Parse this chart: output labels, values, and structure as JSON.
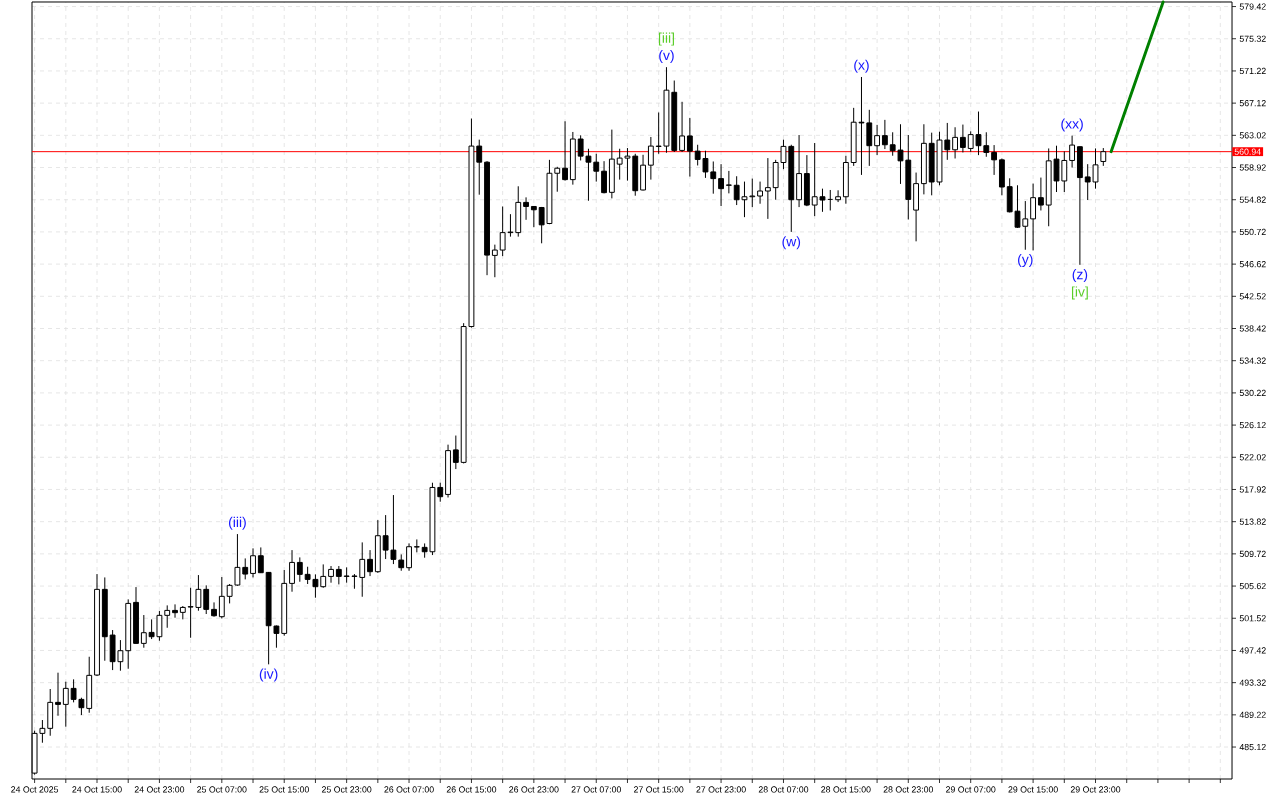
{
  "chart_data": {
    "type": "candlestick",
    "color": "#000000",
    "x": [
      "2025-10-24T07:00",
      "2025-10-24T08:00",
      "2025-10-24T09:00",
      "2025-10-24T10:00",
      "2025-10-24T11:00",
      "2025-10-24T12:00",
      "2025-10-24T13:00",
      "2025-10-24T14:00",
      "2025-10-24T15:00",
      "2025-10-24T16:00",
      "2025-10-24T17:00",
      "2025-10-24T18:00",
      "2025-10-24T19:00",
      "2025-10-24T20:00",
      "2025-10-24T21:00",
      "2025-10-24T22:00",
      "2025-10-24T23:00",
      "2025-10-25T00:00",
      "2025-10-25T01:00",
      "2025-10-25T02:00",
      "2025-10-25T03:00",
      "2025-10-25T04:00",
      "2025-10-25T05:00",
      "2025-10-25T06:00",
      "2025-10-25T07:00",
      "2025-10-25T08:00",
      "2025-10-25T09:00",
      "2025-10-25T10:00",
      "2025-10-25T11:00",
      "2025-10-25T12:00",
      "2025-10-25T13:00",
      "2025-10-25T14:00",
      "2025-10-25T15:00",
      "2025-10-25T16:00",
      "2025-10-25T17:00",
      "2025-10-25T18:00",
      "2025-10-25T19:00",
      "2025-10-25T20:00",
      "2025-10-25T21:00",
      "2025-10-25T22:00",
      "2025-10-25T23:00",
      "2025-10-26T00:00",
      "2025-10-26T01:00",
      "2025-10-26T02:00",
      "2025-10-26T03:00",
      "2025-10-26T04:00",
      "2025-10-26T05:00",
      "2025-10-26T06:00",
      "2025-10-26T07:00",
      "2025-10-26T08:00",
      "2025-10-26T09:00",
      "2025-10-26T10:00",
      "2025-10-26T11:00",
      "2025-10-26T12:00",
      "2025-10-26T13:00",
      "2025-10-26T14:00",
      "2025-10-26T15:00",
      "2025-10-26T16:00",
      "2025-10-26T17:00",
      "2025-10-26T18:00",
      "2025-10-26T19:00",
      "2025-10-26T20:00",
      "2025-10-26T21:00",
      "2025-10-26T22:00",
      "2025-10-26T23:00",
      "2025-10-27T00:00",
      "2025-10-27T01:00",
      "2025-10-27T02:00",
      "2025-10-27T03:00",
      "2025-10-27T04:00",
      "2025-10-27T05:00",
      "2025-10-27T06:00",
      "2025-10-27T07:00",
      "2025-10-27T08:00",
      "2025-10-27T09:00",
      "2025-10-27T10:00",
      "2025-10-27T11:00",
      "2025-10-27T12:00",
      "2025-10-27T13:00",
      "2025-10-27T14:00",
      "2025-10-27T15:00",
      "2025-10-27T16:00",
      "2025-10-27T17:00",
      "2025-10-27T18:00",
      "2025-10-27T19:00",
      "2025-10-27T20:00",
      "2025-10-27T21:00",
      "2025-10-27T22:00",
      "2025-10-27T23:00",
      "2025-10-28T00:00",
      "2025-10-28T01:00",
      "2025-10-28T02:00",
      "2025-10-28T03:00",
      "2025-10-28T04:00",
      "2025-10-28T05:00",
      "2025-10-28T06:00",
      "2025-10-28T07:00",
      "2025-10-28T08:00",
      "2025-10-28T09:00",
      "2025-10-28T10:00",
      "2025-10-28T11:00",
      "2025-10-28T12:00",
      "2025-10-28T13:00",
      "2025-10-28T14:00",
      "2025-10-28T15:00",
      "2025-10-28T16:00",
      "2025-10-28T17:00",
      "2025-10-28T18:00",
      "2025-10-28T19:00",
      "2025-10-28T20:00",
      "2025-10-28T21:00",
      "2025-10-28T22:00",
      "2025-10-28T23:00",
      "2025-10-29T00:00",
      "2025-10-29T01:00",
      "2025-10-29T02:00",
      "2025-10-29T03:00",
      "2025-10-29T04:00",
      "2025-10-29T05:00",
      "2025-10-29T06:00",
      "2025-10-29T07:00",
      "2025-10-29T08:00",
      "2025-10-29T09:00",
      "2025-10-29T10:00",
      "2025-10-29T11:00",
      "2025-10-29T12:00",
      "2025-10-29T13:00",
      "2025-10-29T14:00",
      "2025-10-29T15:00",
      "2025-10-29T16:00",
      "2025-10-29T17:00",
      "2025-10-29T18:00",
      "2025-10-29T19:00",
      "2025-10-29T20:00",
      "2025-10-29T21:00",
      "2025-10-29T22:00",
      "2025-10-29T23:00",
      "2025-10-30T00:00"
    ],
    "ohlc": [
      [
        481.8,
        487.2,
        481.6,
        486.86
      ],
      [
        486.86,
        488.56,
        485.67,
        487.5
      ],
      [
        487.5,
        492.51,
        486.56,
        490.81
      ],
      [
        490.81,
        494.59,
        489.11,
        490.55
      ],
      [
        490.55,
        493.44,
        487.71,
        492.59
      ],
      [
        492.59,
        493.74,
        490.81,
        491.19
      ],
      [
        491.19,
        491.4,
        489.19,
        490.13
      ],
      [
        490.04,
        496.62,
        489.49,
        494.25
      ],
      [
        494.29,
        507.15,
        494.16,
        505.2
      ],
      [
        505.2,
        506.72,
        496.11,
        499.17
      ],
      [
        499.38,
        500.02,
        494.92,
        495.99
      ],
      [
        495.99,
        498.74,
        494.84,
        497.39
      ],
      [
        497.39,
        503.92,
        495.09,
        503.41
      ],
      [
        503.54,
        505.49,
        498.3,
        498.32
      ],
      [
        498.32,
        501.93,
        497.77,
        499.68
      ],
      [
        499.72,
        501.38,
        498.87,
        499.17
      ],
      [
        499.17,
        502.44,
        498.66,
        501.89
      ],
      [
        501.89,
        503.16,
        500.31,
        502.52
      ],
      [
        502.52,
        503.29,
        501.59,
        502.23
      ],
      [
        502.27,
        503.08,
        501.38,
        502.9
      ],
      [
        502.95,
        505.41,
        499.04,
        503.0
      ],
      [
        502.9,
        507.02,
        502.48,
        505.2
      ],
      [
        505.2,
        505.71,
        502.06,
        502.65
      ],
      [
        502.65,
        503.54,
        501.72,
        501.84
      ],
      [
        501.72,
        506.77,
        501.5,
        504.31
      ],
      [
        504.31,
        505.88,
        503.41,
        505.71
      ],
      [
        505.75,
        512.24,
        505.66,
        508.0
      ],
      [
        508.0,
        509.14,
        506.47,
        507.15
      ],
      [
        507.23,
        510.42,
        506.72,
        509.48
      ],
      [
        509.48,
        510.54,
        507.3,
        507.32
      ],
      [
        507.36,
        507.4,
        495.65,
        500.57
      ],
      [
        500.53,
        500.6,
        497.77,
        499.59
      ],
      [
        499.59,
        507.66,
        499.3,
        505.96
      ],
      [
        505.96,
        510.2,
        504.9,
        508.63
      ],
      [
        508.63,
        509.27,
        506.17,
        507.11
      ],
      [
        507.11,
        508.08,
        505.88,
        506.47
      ],
      [
        506.47,
        507.11,
        504.14,
        505.54
      ],
      [
        505.54,
        508.38,
        505.4,
        506.85
      ],
      [
        506.85,
        508.17,
        506.05,
        507.74
      ],
      [
        507.74,
        508.17,
        505.83,
        506.85
      ],
      [
        506.85,
        508.0,
        506.05,
        506.9
      ],
      [
        506.9,
        507.15,
        505.28,
        506.85
      ],
      [
        506.72,
        511.18,
        504.26,
        509.02
      ],
      [
        509.02,
        510.2,
        506.89,
        507.45
      ],
      [
        507.45,
        514.02,
        507.3,
        512.03
      ],
      [
        512.03,
        514.66,
        509.06,
        510.2
      ],
      [
        510.2,
        517.21,
        508.42,
        509.02
      ],
      [
        508.93,
        509.65,
        507.57,
        507.96
      ],
      [
        507.96,
        511.05,
        507.57,
        510.63
      ],
      [
        510.6,
        511.56,
        509.91,
        510.63
      ],
      [
        510.55,
        511.05,
        509.23,
        509.99
      ],
      [
        509.99,
        518.78,
        509.57,
        518.18
      ],
      [
        518.18,
        518.78,
        516.36,
        517.0
      ],
      [
        517.29,
        523.63,
        516.9,
        522.87
      ],
      [
        522.96,
        524.79,
        520.52,
        521.37
      ],
      [
        521.37,
        539.1,
        521.24,
        538.67
      ],
      [
        538.67,
        565.16,
        538.54,
        561.65
      ],
      [
        561.65,
        562.47,
        555.46,
        559.6
      ],
      [
        559.6,
        559.73,
        545.21,
        547.77
      ],
      [
        547.73,
        549.1,
        544.95,
        548.41
      ],
      [
        548.41,
        553.96,
        547.64,
        550.63
      ],
      [
        550.63,
        552.98,
        550.12,
        550.7
      ],
      [
        550.63,
        556.53,
        550.12,
        554.48
      ],
      [
        554.48,
        555.12,
        552.26,
        553.96
      ],
      [
        553.96,
        554.0,
        551.32,
        553.54
      ],
      [
        553.83,
        553.9,
        549.27,
        551.62
      ],
      [
        551.79,
        559.9,
        551.7,
        558.19
      ],
      [
        558.19,
        559.01,
        555.84,
        558.83
      ],
      [
        558.83,
        564.81,
        557.25,
        557.38
      ],
      [
        557.38,
        563.45,
        556.74,
        562.55
      ],
      [
        562.55,
        563.02,
        559.82,
        560.37
      ],
      [
        560.37,
        561.31,
        554.69,
        559.6
      ],
      [
        559.6,
        560.67,
        557.13,
        558.45
      ],
      [
        558.45,
        559.73,
        555.63,
        555.72
      ],
      [
        555.76,
        563.75,
        554.99,
        559.99
      ],
      [
        559.35,
        561.31,
        557.38,
        560.12
      ],
      [
        560.12,
        561.4,
        557.25,
        560.37
      ],
      [
        560.37,
        560.67,
        555.33,
        555.97
      ],
      [
        556.06,
        560.54,
        556.0,
        559.22
      ],
      [
        559.22,
        562.81,
        557.38,
        561.65
      ],
      [
        561.6,
        565.93,
        560.67,
        561.65
      ],
      [
        561.65,
        571.7,
        560.8,
        568.77
      ],
      [
        568.5,
        570.0,
        560.9,
        561.1
      ],
      [
        561.1,
        567.29,
        560.9,
        562.94
      ],
      [
        562.94,
        565.24,
        557.77,
        561.01
      ],
      [
        561.01,
        561.82,
        559.18,
        559.95
      ],
      [
        560.07,
        561.06,
        557.6,
        558.36
      ],
      [
        558.36,
        559.69,
        555.59,
        557.51
      ],
      [
        557.51,
        559.35,
        554.01,
        556.23
      ],
      [
        556.7,
        558.49,
        555.63,
        556.66
      ],
      [
        556.66,
        557.81,
        554.14,
        554.82
      ],
      [
        554.82,
        557.13,
        552.6,
        555.2
      ],
      [
        555.2,
        557.51,
        553.88,
        555.29
      ],
      [
        555.29,
        557.13,
        554.31,
        555.93
      ],
      [
        555.93,
        560.12,
        552.38,
        556.36
      ],
      [
        556.36,
        559.9,
        554.82,
        559.56
      ],
      [
        559.56,
        562.47,
        558.71,
        561.61
      ],
      [
        561.61,
        561.82,
        550.72,
        554.82
      ],
      [
        554.82,
        563.06,
        553.88,
        558.15
      ],
      [
        558.15,
        560.5,
        554.0,
        554.14
      ],
      [
        554.14,
        562.04,
        552.73,
        555.2
      ],
      [
        555.2,
        556.23,
        553.28,
        554.78
      ],
      [
        554.86,
        556.06,
        553.45,
        554.86
      ],
      [
        554.82,
        556.02,
        554.52,
        555.2
      ],
      [
        555.2,
        560.42,
        554.31,
        559.56
      ],
      [
        559.56,
        566.52,
        559.13,
        564.69
      ],
      [
        564.69,
        570.45,
        557.98,
        564.6
      ],
      [
        564.6,
        566.27,
        559.13,
        561.7
      ],
      [
        561.7,
        564.35,
        560.5,
        562.98
      ],
      [
        562.98,
        564.99,
        561.27,
        561.82
      ],
      [
        561.82,
        563.41,
        560.42,
        561.06
      ],
      [
        561.14,
        564.43,
        556.83,
        559.77
      ],
      [
        559.86,
        563.06,
        552.3,
        554.86
      ],
      [
        553.5,
        558.28,
        549.52,
        556.87
      ],
      [
        556.87,
        564.43,
        555.5,
        562.0
      ],
      [
        562.0,
        563.36,
        555.38,
        557.08
      ],
      [
        557.08,
        563.49,
        556.66,
        562.42
      ],
      [
        562.42,
        564.6,
        559.9,
        561.18
      ],
      [
        561.18,
        564.05,
        560.07,
        562.76
      ],
      [
        562.76,
        564.39,
        560.84,
        561.48
      ],
      [
        561.35,
        563.53,
        560.93,
        563.11
      ],
      [
        563.11,
        566.05,
        560.5,
        561.7
      ],
      [
        561.7,
        563.41,
        560.29,
        560.84
      ],
      [
        560.84,
        561.78,
        557.98,
        559.9
      ],
      [
        559.9,
        560.07,
        555.38,
        556.44
      ],
      [
        556.48,
        557.55,
        553.2,
        553.28
      ],
      [
        553.36,
        556.66,
        551.23,
        551.32
      ],
      [
        551.44,
        554.65,
        548.45,
        552.38
      ],
      [
        552.38,
        556.87,
        548.37,
        555.08
      ],
      [
        555.08,
        557.64,
        553.45,
        554.14
      ],
      [
        554.14,
        561.35,
        551.44,
        559.77
      ],
      [
        559.99,
        561.7,
        555.8,
        557.21
      ],
      [
        557.21,
        560.97,
        555.8,
        559.82
      ],
      [
        559.82,
        562.98,
        558.92,
        561.78
      ],
      [
        561.57,
        561.6,
        546.53,
        557.64
      ],
      [
        557.72,
        559.35,
        554.78,
        557.08
      ],
      [
        557.08,
        561.35,
        556.23,
        559.26
      ],
      [
        559.69,
        561.4,
        559.13,
        560.94
      ]
    ],
    "series": [
      {
        "type": "line",
        "color": "#008000",
        "x": [
          "2025-10-30T01:00",
          "2025-10-30T07:40"
        ],
        "values": [
          560.94,
          580.0
        ]
      }
    ],
    "xlim": [
      "2025-10-24T06:40",
      "2025-10-30T16:30"
    ],
    "ylim": [
      481.05,
      580.0
    ],
    "yticks": [
      485.12,
      489.22,
      493.32,
      497.42,
      501.52,
      505.62,
      509.72,
      513.82,
      517.92,
      522.02,
      526.12,
      530.22,
      534.32,
      538.42,
      542.52,
      546.62,
      550.72,
      554.82,
      558.92,
      563.02,
      567.12,
      571.22,
      575.32,
      579.42
    ],
    "xticks": [
      {
        "value": "2025-10-24T07:00",
        "label": "24 Oct 2025"
      },
      {
        "value": "2025-10-24T11:00",
        "label": null
      },
      {
        "value": "2025-10-24T15:00",
        "label": "24 Oct 15:00"
      },
      {
        "value": "2025-10-24T19:00",
        "label": null
      },
      {
        "value": "2025-10-24T23:00",
        "label": "24 Oct 23:00"
      },
      {
        "value": "2025-10-25T03:00",
        "label": null
      },
      {
        "value": "2025-10-25T07:00",
        "label": "25 Oct 07:00"
      },
      {
        "value": "2025-10-25T11:00",
        "label": null
      },
      {
        "value": "2025-10-25T15:00",
        "label": "25 Oct 15:00"
      },
      {
        "value": "2025-10-25T19:00",
        "label": null
      },
      {
        "value": "2025-10-25T23:00",
        "label": "25 Oct 23:00"
      },
      {
        "value": "2025-10-26T03:00",
        "label": null
      },
      {
        "value": "2025-10-26T07:00",
        "label": "26 Oct 07:00"
      },
      {
        "value": "2025-10-26T11:00",
        "label": null
      },
      {
        "value": "2025-10-26T15:00",
        "label": "26 Oct 15:00"
      },
      {
        "value": "2025-10-26T19:00",
        "label": null
      },
      {
        "value": "2025-10-26T23:00",
        "label": "26 Oct 23:00"
      },
      {
        "value": "2025-10-27T03:00",
        "label": null
      },
      {
        "value": "2025-10-27T07:00",
        "label": "27 Oct 07:00"
      },
      {
        "value": "2025-10-27T11:00",
        "label": null
      },
      {
        "value": "2025-10-27T15:00",
        "label": "27 Oct 15:00"
      },
      {
        "value": "2025-10-27T19:00",
        "label": null
      },
      {
        "value": "2025-10-27T23:00",
        "label": "27 Oct 23:00"
      },
      {
        "value": "2025-10-28T03:00",
        "label": null
      },
      {
        "value": "2025-10-28T07:00",
        "label": "28 Oct 07:00"
      },
      {
        "value": "2025-10-28T11:00",
        "label": null
      },
      {
        "value": "2025-10-28T15:00",
        "label": "28 Oct 15:00"
      },
      {
        "value": "2025-10-28T19:00",
        "label": null
      },
      {
        "value": "2025-10-28T23:00",
        "label": "28 Oct 23:00"
      },
      {
        "value": "2025-10-29T03:00",
        "label": null
      },
      {
        "value": "2025-10-29T07:00",
        "label": "29 Oct 07:00"
      },
      {
        "value": "2025-10-29T11:00",
        "label": null
      },
      {
        "value": "2025-10-29T15:00",
        "label": "29 Oct 15:00"
      },
      {
        "value": "2025-10-29T19:00",
        "label": null
      },
      {
        "value": "2025-10-29T23:00",
        "label": "29 Oct 23:00"
      },
      {
        "value": "2025-10-30T03:00",
        "label": null
      },
      {
        "value": "2025-10-30T07:00",
        "label": null
      },
      {
        "value": "2025-10-30T11:00",
        "label": null
      },
      {
        "value": "2025-10-30T15:00",
        "label": null
      }
    ],
    "grid": true,
    "ref_lines": [
      {
        "axis": "y",
        "value": 560.94,
        "label": "560.94",
        "color": "#ff0000"
      }
    ],
    "annotations": [
      {
        "text": "(iii)",
        "x": "2025-10-25T09:00",
        "y": 512.24
      },
      {
        "text": "(iv)",
        "x": "2025-10-25T13:00",
        "y": 495.65
      },
      {
        "text": "(v)",
        "x": "2025-10-27T16:00",
        "y": 571.7
      },
      {
        "text": "[iii]",
        "x": "2025-10-27T16:00",
        "y": 571.7
      },
      {
        "text": "(w)",
        "x": "2025-10-28T08:00",
        "y": 550.72
      },
      {
        "text": "(x)",
        "x": "2025-10-28T17:00",
        "y": 570.45
      },
      {
        "text": "(y)",
        "x": "2025-10-29T14:00",
        "y": 548.45
      },
      {
        "text": "(xx)",
        "x": "2025-10-29T20:00",
        "y": 562.98
      },
      {
        "text": "(z)",
        "x": "2025-10-29T21:00",
        "y": 546.53
      },
      {
        "text": "[iv]",
        "x": "2025-10-29T21:00",
        "y": 546.53
      }
    ]
  }
}
